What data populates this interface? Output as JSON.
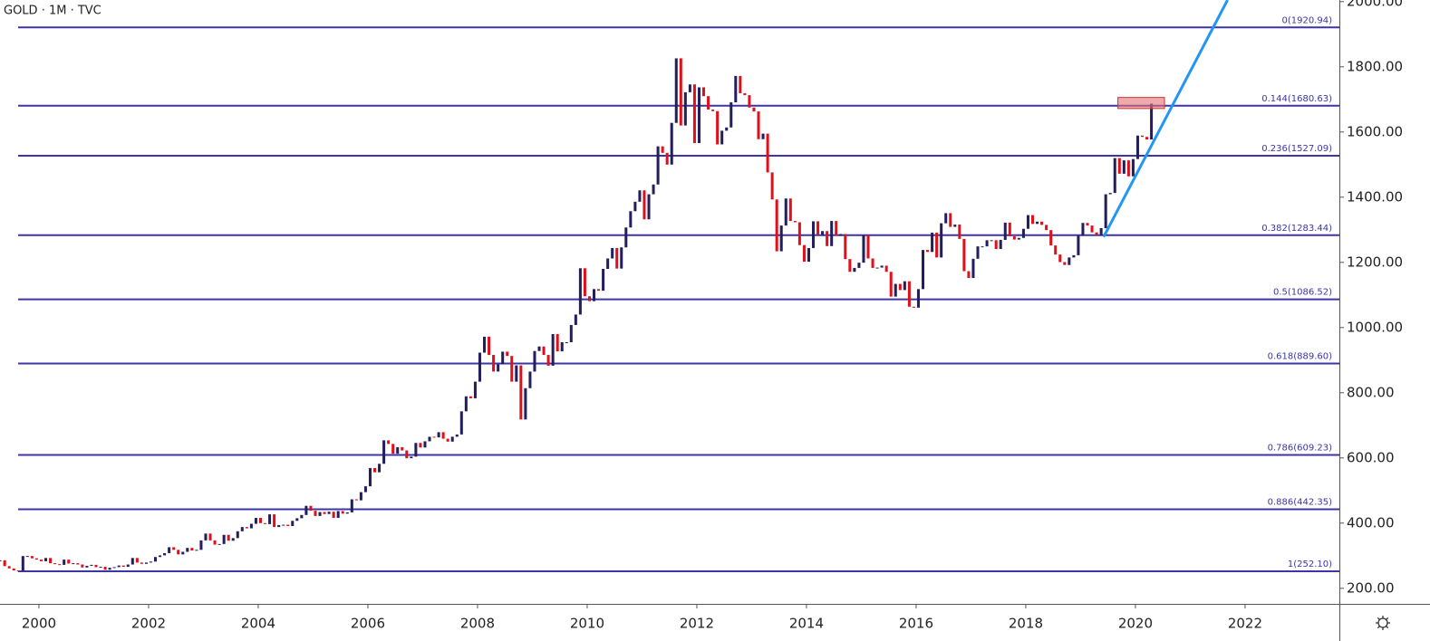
{
  "chart_data": {
    "type": "candlestick",
    "title": "GOLD · 1M · TVC",
    "up_color": "#231f5c",
    "down_color": "#e0101a",
    "x": [
      "1999-04",
      "1999-05",
      "1999-06",
      "1999-07",
      "1999-08",
      "1999-09",
      "1999-10",
      "1999-11",
      "1999-12",
      "2000-01",
      "2000-02",
      "2000-03",
      "2000-04",
      "2000-05",
      "2000-06",
      "2000-07",
      "2000-08",
      "2000-09",
      "2000-10",
      "2000-11",
      "2000-12",
      "2001-01",
      "2001-02",
      "2001-03",
      "2001-04",
      "2001-05",
      "2001-06",
      "2001-07",
      "2001-08",
      "2001-09",
      "2001-10",
      "2001-11",
      "2001-12",
      "2002-01",
      "2002-02",
      "2002-03",
      "2002-04",
      "2002-05",
      "2002-06",
      "2002-07",
      "2002-08",
      "2002-09",
      "2002-10",
      "2002-11",
      "2002-12",
      "2003-01",
      "2003-02",
      "2003-03",
      "2003-04",
      "2003-05",
      "2003-06",
      "2003-07",
      "2003-08",
      "2003-09",
      "2003-10",
      "2003-11",
      "2003-12",
      "2004-01",
      "2004-02",
      "2004-03",
      "2004-04",
      "2004-05",
      "2004-06",
      "2004-07",
      "2004-08",
      "2004-09",
      "2004-10",
      "2004-11",
      "2004-12",
      "2005-01",
      "2005-02",
      "2005-03",
      "2005-04",
      "2005-05",
      "2005-06",
      "2005-07",
      "2005-08",
      "2005-09",
      "2005-10",
      "2005-11",
      "2005-12",
      "2006-01",
      "2006-02",
      "2006-03",
      "2006-04",
      "2006-05",
      "2006-06",
      "2006-07",
      "2006-08",
      "2006-09",
      "2006-10",
      "2006-11",
      "2006-12",
      "2007-01",
      "2007-02",
      "2007-03",
      "2007-04",
      "2007-05",
      "2007-06",
      "2007-07",
      "2007-08",
      "2007-09",
      "2007-10",
      "2007-11",
      "2007-12",
      "2008-01",
      "2008-02",
      "2008-03",
      "2008-04",
      "2008-05",
      "2008-06",
      "2008-07",
      "2008-08",
      "2008-09",
      "2008-10",
      "2008-11",
      "2008-12",
      "2009-01",
      "2009-02",
      "2009-03",
      "2009-04",
      "2009-05",
      "2009-06",
      "2009-07",
      "2009-08",
      "2009-09",
      "2009-10",
      "2009-11",
      "2009-12",
      "2010-01",
      "2010-02",
      "2010-03",
      "2010-04",
      "2010-05",
      "2010-06",
      "2010-07",
      "2010-08",
      "2010-09",
      "2010-10",
      "2010-11",
      "2010-12",
      "2011-01",
      "2011-02",
      "2011-03",
      "2011-04",
      "2011-05",
      "2011-06",
      "2011-07",
      "2011-08",
      "2011-09",
      "2011-10",
      "2011-11",
      "2011-12",
      "2012-01",
      "2012-02",
      "2012-03",
      "2012-04",
      "2012-05",
      "2012-06",
      "2012-07",
      "2012-08",
      "2012-09",
      "2012-10",
      "2012-11",
      "2012-12",
      "2013-01",
      "2013-02",
      "2013-03",
      "2013-04",
      "2013-05",
      "2013-06",
      "2013-07",
      "2013-08",
      "2013-09",
      "2013-10",
      "2013-11",
      "2013-12",
      "2014-01",
      "2014-02",
      "2014-03",
      "2014-04",
      "2014-05",
      "2014-06",
      "2014-07",
      "2014-08",
      "2014-09",
      "2014-10",
      "2014-11",
      "2014-12",
      "2015-01",
      "2015-02",
      "2015-03",
      "2015-04",
      "2015-05",
      "2015-06",
      "2015-07",
      "2015-08",
      "2015-09",
      "2015-10",
      "2015-11",
      "2015-12",
      "2016-01",
      "2016-02",
      "2016-03",
      "2016-04",
      "2016-05",
      "2016-06",
      "2016-07",
      "2016-08",
      "2016-09",
      "2016-10",
      "2016-11",
      "2016-12",
      "2017-01",
      "2017-02",
      "2017-03",
      "2017-04",
      "2017-05",
      "2017-06",
      "2017-07",
      "2017-08",
      "2017-09",
      "2017-10",
      "2017-11",
      "2017-12",
      "2018-01",
      "2018-02",
      "2018-03",
      "2018-04",
      "2018-05",
      "2018-06",
      "2018-07",
      "2018-08",
      "2018-09",
      "2018-10",
      "2018-11",
      "2018-12",
      "2019-01",
      "2019-02",
      "2019-03",
      "2019-04",
      "2019-05",
      "2019-06",
      "2019-07",
      "2019-08",
      "2019-09",
      "2019-10",
      "2019-11",
      "2019-12",
      "2020-01",
      "2020-02",
      "2020-03",
      "2020-04"
    ],
    "values": [
      286,
      268,
      261,
      255,
      254,
      299,
      299,
      292,
      288,
      283,
      293,
      277,
      274,
      272,
      288,
      276,
      277,
      273,
      264,
      269,
      272,
      265,
      266,
      257,
      263,
      265,
      270,
      266,
      273,
      293,
      279,
      275,
      279,
      282,
      296,
      301,
      308,
      326,
      318,
      304,
      312,
      324,
      316,
      318,
      347,
      368,
      347,
      334,
      336,
      364,
      346,
      354,
      375,
      388,
      384,
      398,
      416,
      400,
      397,
      427,
      388,
      394,
      395,
      391,
      407,
      415,
      425,
      453,
      438,
      422,
      434,
      428,
      435,
      416,
      437,
      429,
      433,
      473,
      470,
      495,
      513,
      569,
      556,
      582,
      654,
      643,
      613,
      633,
      623,
      599,
      604,
      646,
      632,
      651,
      665,
      663,
      679,
      659,
      650,
      665,
      672,
      743,
      789,
      783,
      834,
      923,
      972,
      916,
      865,
      887,
      926,
      913,
      834,
      884,
      718,
      814,
      865,
      928,
      942,
      916,
      883,
      980,
      927,
      955,
      955,
      1008,
      1040,
      1182,
      1096,
      1081,
      1118,
      1113,
      1180,
      1212,
      1244,
      1181,
      1246,
      1307,
      1357,
      1386,
      1421,
      1332,
      1409,
      1439,
      1556,
      1536,
      1500,
      1628,
      1826,
      1620,
      1722,
      1746,
      1566,
      1737,
      1710,
      1669,
      1664,
      1562,
      1604,
      1614,
      1691,
      1772,
      1719,
      1713,
      1675,
      1663,
      1578,
      1595,
      1476,
      1393,
      1234,
      1313,
      1396,
      1327,
      1323,
      1253,
      1202,
      1244,
      1326,
      1284,
      1296,
      1250,
      1327,
      1282,
      1287,
      1210,
      1171,
      1183,
      1199,
      1283,
      1212,
      1183,
      1184,
      1190,
      1171,
      1095,
      1134,
      1115,
      1142,
      1064,
      1061,
      1118,
      1238,
      1232,
      1291,
      1215,
      1320,
      1351,
      1309,
      1316,
      1272,
      1173,
      1152,
      1211,
      1249,
      1249,
      1268,
      1268,
      1241,
      1269,
      1322,
      1280,
      1270,
      1275,
      1303,
      1345,
      1318,
      1325,
      1315,
      1299,
      1252,
      1224,
      1201,
      1192,
      1215,
      1222,
      1282,
      1321,
      1313,
      1292,
      1284,
      1305,
      1409,
      1413,
      1520,
      1472,
      1513,
      1464,
      1517,
      1589,
      1585,
      1577,
      1687
    ],
    "xlim": [
      1999.29,
      2023.72
    ],
    "xticks": [
      2000,
      2002,
      2004,
      2006,
      2008,
      2010,
      2012,
      2014,
      2016,
      2018,
      2020,
      2022
    ],
    "ylim": [
      155,
      2005
    ],
    "yticks": [
      {
        "value": 200,
        "label": "200.00"
      },
      {
        "value": 400,
        "label": "400.00"
      },
      {
        "value": 600,
        "label": "600.00"
      },
      {
        "value": 800,
        "label": "800.00"
      },
      {
        "value": 1000,
        "label": "1000.00"
      },
      {
        "value": 1200,
        "label": "1200.00"
      },
      {
        "value": 1400,
        "label": "1400.00"
      },
      {
        "value": 1600,
        "label": "1600.00"
      },
      {
        "value": 1800,
        "label": "1800.00"
      },
      {
        "value": 2000,
        "label": "2000.00"
      }
    ],
    "fib_color": "#3d35a6",
    "fib_levels": [
      {
        "value": 1920.94,
        "label": "0(1920.94)"
      },
      {
        "value": 1680.63,
        "label": "0.144(1680.63)"
      },
      {
        "value": 1527.09,
        "label": "0.236(1527.09)"
      },
      {
        "value": 1283.44,
        "label": "0.382(1283.44)"
      },
      {
        "value": 1086.52,
        "label": "0.5(1086.52)"
      },
      {
        "value": 889.6,
        "label": "0.618(889.60)"
      },
      {
        "value": 609.23,
        "label": "0.786(609.23)"
      },
      {
        "value": 442.35,
        "label": "0.886(442.35)"
      },
      {
        "value": 252.1,
        "label": "1(252.10)"
      }
    ],
    "trend_line": {
      "color": "#2196f3",
      "x": [
        2019.42,
        2021.68
      ],
      "y": [
        1278,
        2005
      ]
    },
    "zone": {
      "color": "#e57373",
      "x": [
        2019.68,
        2020.53
      ],
      "y": [
        1672,
        1706
      ]
    }
  }
}
